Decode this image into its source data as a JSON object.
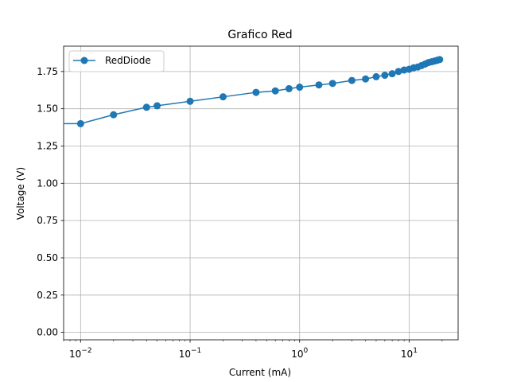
{
  "chart_data": {
    "type": "line",
    "title": "Grafico Red",
    "xlabel": "Current (mA)",
    "ylabel": "Voltage (V)",
    "xscale": "log",
    "xlim": [
      0.007,
      28
    ],
    "ylim": [
      -0.05,
      1.92
    ],
    "grid": true,
    "legend_position": "top-left",
    "x_ticks": [
      {
        "value": 0.01,
        "base": "10",
        "exp": "−2"
      },
      {
        "value": 0.1,
        "base": "10",
        "exp": "−1"
      },
      {
        "value": 1,
        "base": "10",
        "exp": "0"
      },
      {
        "value": 10,
        "base": "10",
        "exp": "1"
      }
    ],
    "y_ticks": [
      {
        "value": 0.0,
        "label": "0.00"
      },
      {
        "value": 0.25,
        "label": "0.25"
      },
      {
        "value": 0.5,
        "label": "0.50"
      },
      {
        "value": 0.75,
        "label": "0.75"
      },
      {
        "value": 1.0,
        "label": "1.00"
      },
      {
        "value": 1.25,
        "label": "1.25"
      },
      {
        "value": 1.5,
        "label": "1.50"
      },
      {
        "value": 1.75,
        "label": "1.75"
      }
    ],
    "series": [
      {
        "name": "RedDiode",
        "color": "#1f77b4",
        "x": [
          0.0,
          0.01,
          0.02,
          0.04,
          0.05,
          0.1,
          0.2,
          0.4,
          0.6,
          0.8,
          1.0,
          1.5,
          2.0,
          3.0,
          4.0,
          5.0,
          6.0,
          7.0,
          8.0,
          9.0,
          10.0,
          11.0,
          12.0,
          13.0,
          14.0,
          15.0,
          16.0,
          17.0,
          18.0,
          19.0
        ],
        "y": [
          1.4,
          1.4,
          1.46,
          1.51,
          1.52,
          1.55,
          1.58,
          1.61,
          1.62,
          1.635,
          1.645,
          1.66,
          1.67,
          1.69,
          1.7,
          1.715,
          1.725,
          1.735,
          1.75,
          1.76,
          1.765,
          1.775,
          1.78,
          1.79,
          1.8,
          1.81,
          1.815,
          1.82,
          1.825,
          1.83
        ]
      }
    ]
  }
}
